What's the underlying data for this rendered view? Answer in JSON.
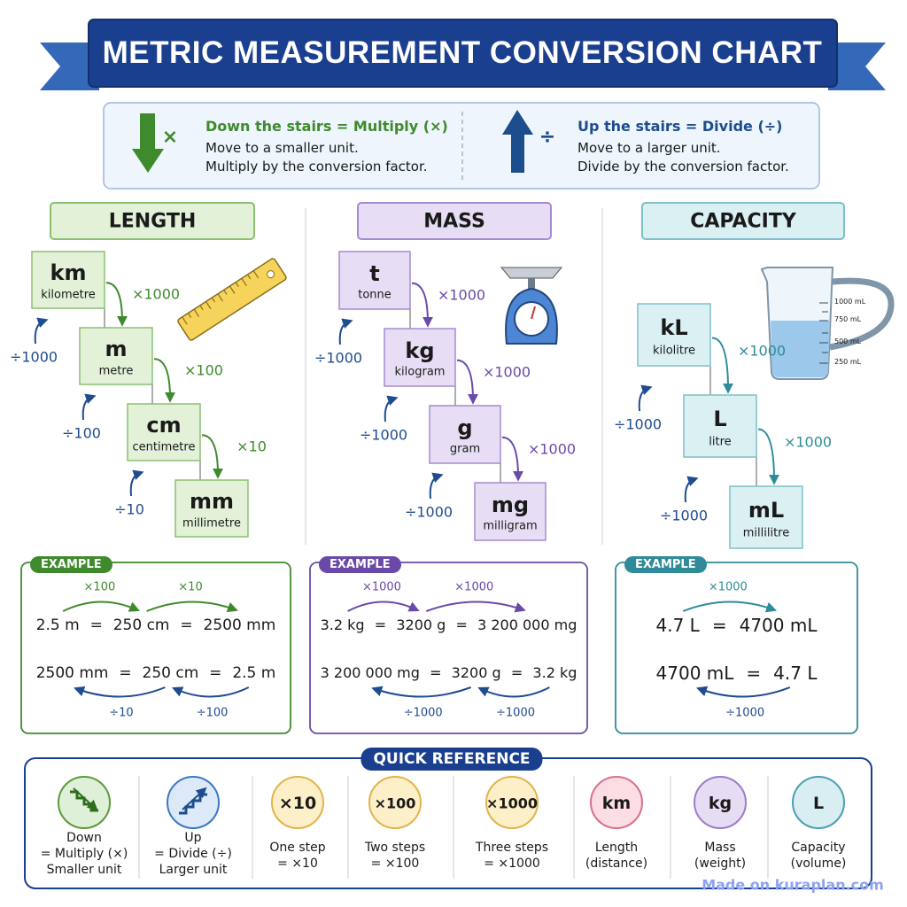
{
  "title": "METRIC MEASUREMENT CONVERSION CHART",
  "rules": [
    {
      "symbol": "×",
      "heading": "Down the stairs = Multiply (×)",
      "lines": [
        "Move to a smaller unit.",
        "Multiply by the conversion factor."
      ]
    },
    {
      "symbol": "÷",
      "heading": "Up the stairs = Divide (÷)",
      "lines": [
        "Move to a larger unit.",
        "Divide by the conversion factor."
      ]
    }
  ],
  "sections": [
    {
      "heading": "LENGTH",
      "units": [
        {
          "symbol": "km",
          "name": "kilometre"
        },
        {
          "symbol": "m",
          "name": "metre"
        },
        {
          "symbol": "cm",
          "name": "centimetre"
        },
        {
          "symbol": "mm",
          "name": "millimetre"
        }
      ],
      "down": [
        "×1000",
        "×100",
        "×10"
      ],
      "up": [
        "÷1000",
        "÷100",
        "÷10"
      ],
      "example": {
        "badge": "EXAMPLE",
        "rows": [
          {
            "parts": [
              "2.5 m",
              "=",
              "250 cm",
              "=",
              "2500 mm"
            ],
            "steps": [
              "×100",
              "×10"
            ]
          },
          {
            "parts": [
              "2500 mm",
              "=",
              "250 cm",
              "=",
              "2.5 m"
            ],
            "steps": [
              "÷10",
              "÷100"
            ]
          }
        ]
      }
    },
    {
      "heading": "MASS",
      "units": [
        {
          "symbol": "t",
          "name": "tonne"
        },
        {
          "symbol": "kg",
          "name": "kilogram"
        },
        {
          "symbol": "g",
          "name": "gram"
        },
        {
          "symbol": "mg",
          "name": "milligram"
        }
      ],
      "down": [
        "×1000",
        "×1000",
        "×1000"
      ],
      "up": [
        "÷1000",
        "÷1000",
        "÷1000"
      ],
      "example": {
        "badge": "EXAMPLE",
        "rows": [
          {
            "parts": [
              "3.2 kg",
              "=",
              "3200 g",
              "=",
              "3 200 000 mg"
            ],
            "steps": [
              "×1000",
              "×1000"
            ]
          },
          {
            "parts": [
              "3 200 000 mg",
              "=",
              "3200 g",
              "=",
              "3.2 kg"
            ],
            "steps": [
              "÷1000",
              "÷1000"
            ]
          }
        ]
      }
    },
    {
      "heading": "CAPACITY",
      "units": [
        {
          "symbol": "kL",
          "name": "kilolitre"
        },
        {
          "symbol": "L",
          "name": "litre"
        },
        {
          "symbol": "mL",
          "name": "millilitre"
        }
      ],
      "down": [
        "×1000",
        "×1000"
      ],
      "up": [
        "÷1000",
        "÷1000"
      ],
      "example": {
        "badge": "EXAMPLE",
        "rows": [
          {
            "parts": [
              "4.7 L",
              "=",
              "4700 mL"
            ],
            "steps": [
              "×1000"
            ]
          },
          {
            "parts": [
              "4700 mL",
              "=",
              "4.7 L"
            ],
            "steps": [
              "÷1000"
            ]
          }
        ]
      }
    }
  ],
  "jug_labels": [
    "1000 mL",
    "750 mL",
    "500 mL",
    "250 mL"
  ],
  "quick_reference": {
    "title": "QUICK REFERENCE",
    "items": [
      {
        "lines": [
          "Down",
          "= Multiply (×)",
          "Smaller unit"
        ]
      },
      {
        "lines": [
          "Up",
          "= Divide (÷)",
          "Larger unit"
        ]
      },
      {
        "icon": "×10",
        "lines": [
          "One step",
          "= ×10"
        ]
      },
      {
        "icon": "×100",
        "lines": [
          "Two steps",
          "= ×100"
        ]
      },
      {
        "icon": "×1000",
        "lines": [
          "Three steps",
          "= ×1000"
        ]
      },
      {
        "icon": "km",
        "lines": [
          "Length",
          "(distance)"
        ]
      },
      {
        "icon": "kg",
        "lines": [
          "Mass",
          "(weight)"
        ]
      },
      {
        "icon": "L",
        "lines": [
          "Capacity",
          "(volume)"
        ]
      }
    ]
  },
  "watermark": "Made on kuraplan.com"
}
